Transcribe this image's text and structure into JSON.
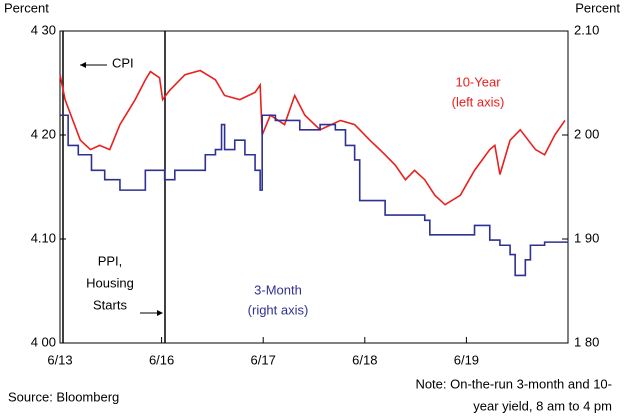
{
  "chart_data": {
    "type": "line",
    "left_axis_label": "Percent",
    "right_axis_label": "Percent",
    "xlim": [
      0,
      5
    ],
    "xticks": [
      {
        "value": 0,
        "label": "6/13"
      },
      {
        "value": 1,
        "label": "6/16"
      },
      {
        "value": 2,
        "label": "6/17"
      },
      {
        "value": 3,
        "label": "6/18"
      },
      {
        "value": 4,
        "label": "6/19"
      }
    ],
    "ylim": [
      4.0,
      4.3
    ],
    "yticks": [
      {
        "value": 4.0,
        "label": "4 00"
      },
      {
        "value": 4.1,
        "label": "4.10"
      },
      {
        "value": 4.2,
        "label": "4 20"
      },
      {
        "value": 4.3,
        "label": "4 30"
      }
    ],
    "y2lim": [
      1.8,
      2.1
    ],
    "y2ticks": [
      {
        "value": 1.8,
        "label": "1 80"
      },
      {
        "value": 1.9,
        "label": "1 90"
      },
      {
        "value": 2.0,
        "label": "2 00"
      },
      {
        "value": 2.1,
        "label": "2.10"
      }
    ],
    "series": [
      {
        "name": "10-Year",
        "color": "#e8201e",
        "axis": "y",
        "x": [
          0,
          0.05,
          0.2,
          0.3,
          0.39,
          0.49,
          0.59,
          0.74,
          0.84,
          0.89,
          0.98,
          1.01,
          1.08,
          1.23,
          1.38,
          1.53,
          1.62,
          1.77,
          1.92,
          1.97,
          1.99,
          2.07,
          2.21,
          2.31,
          2.41,
          2.56,
          2.76,
          2.9,
          3.05,
          3.2,
          3.3,
          3.4,
          3.49,
          3.59,
          3.69,
          3.79,
          3.94,
          4.08,
          4.23,
          4.28,
          4.33,
          4.43,
          4.53,
          4.68,
          4.77,
          4.87,
          4.97
        ],
        "values": [
          4.258,
          4.234,
          4.195,
          4.186,
          4.19,
          4.186,
          4.21,
          4.234,
          4.253,
          4.261,
          4.255,
          4.234,
          4.243,
          4.258,
          4.262,
          4.253,
          4.238,
          4.234,
          4.241,
          4.248,
          4.2,
          4.219,
          4.21,
          4.238,
          4.219,
          4.205,
          4.214,
          4.21,
          4.195,
          4.181,
          4.171,
          4.157,
          4.166,
          4.157,
          4.142,
          4.133,
          4.142,
          4.166,
          4.186,
          4.19,
          4.162,
          4.195,
          4.205,
          4.186,
          4.181,
          4.2,
          4.214
        ]
      },
      {
        "name": "3-Month",
        "color": "#2e3192",
        "axis": "y2",
        "x": [
          0,
          0.08,
          0.18,
          0.31,
          0.44,
          0.59,
          0.79,
          0.84,
          1.01,
          1.03,
          1.13,
          1.43,
          1.53,
          1.59,
          1.62,
          1.72,
          1.82,
          1.92,
          1.97,
          1.99,
          2.12,
          2.36,
          2.56,
          2.71,
          2.81,
          2.9,
          2.95,
          3.15,
          3.2,
          3.35,
          3.59,
          3.64,
          3.94,
          4.08,
          4.23,
          4.33,
          4.43,
          4.48,
          4.58,
          4.63,
          4.77,
          5
        ],
        "values": [
          2.019,
          1.99,
          1.981,
          1.966,
          1.957,
          1.947,
          1.947,
          1.966,
          1.966,
          1.957,
          1.966,
          1.981,
          1.986,
          2.01,
          1.986,
          1.995,
          1.981,
          1.966,
          1.947,
          2.019,
          2.014,
          2.005,
          2.01,
          2.005,
          1.99,
          1.976,
          1.937,
          1.937,
          1.923,
          1.923,
          1.918,
          1.904,
          1.904,
          1.913,
          1.899,
          1.894,
          1.885,
          1.865,
          1.88,
          1.894,
          1.897,
          1.897
        ]
      }
    ],
    "annotations": {
      "ten_year": [
        "10-Year",
        "(left axis)"
      ],
      "three_month": [
        "3-Month",
        "(right axis)"
      ],
      "cpi": "CPI",
      "ppi": [
        "PPI,",
        "Housing",
        "Starts"
      ]
    },
    "source": "Source: Bloomberg",
    "note": [
      "Note: On-the-run 3-month and 10-",
      "year yield, 8 am to 4 pm"
    ]
  }
}
